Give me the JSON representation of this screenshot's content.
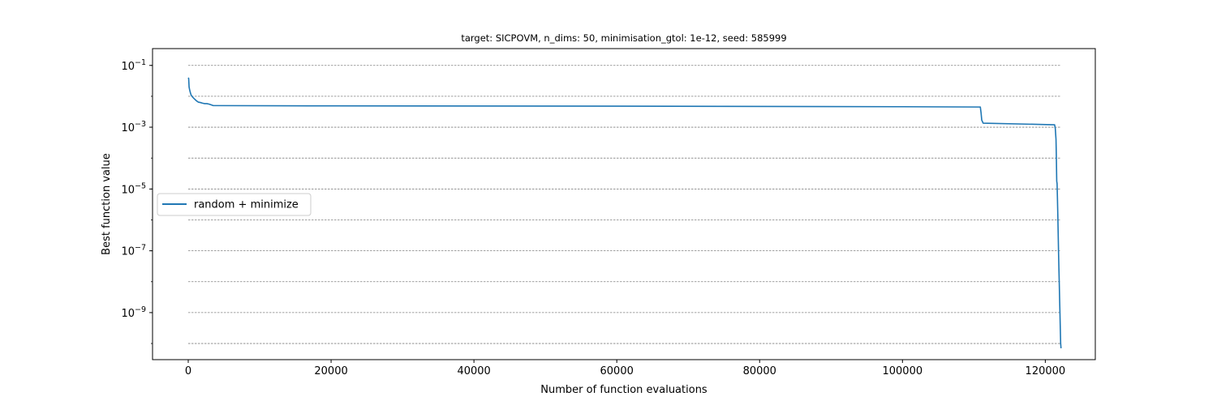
{
  "chart_data": {
    "type": "line",
    "title": "target: SICPOVM, n_dims: 50, minimisation_gtol: 1e-12, seed: 585999",
    "xlabel": "Number of function evaluations",
    "ylabel": "Best function value",
    "xlim": [
      -5000,
      127000
    ],
    "ylim": [
      3e-11,
      0.35
    ],
    "yscale": "log",
    "x_ticks": [
      0,
      20000,
      40000,
      60000,
      80000,
      100000,
      120000
    ],
    "x_tick_labels": [
      "0",
      "20000",
      "40000",
      "60000",
      "80000",
      "100000",
      "120000"
    ],
    "y_tick_exponents": [
      -1,
      -3,
      -5,
      -7,
      -9
    ],
    "y_tick_base": "10",
    "y_tick_minus": "−",
    "grid": "horizontal dashed at every decade",
    "grid_lines": [
      0.1,
      0.01,
      0.001,
      0.0001,
      1e-05,
      1e-06,
      1e-07,
      1e-08,
      1e-09,
      1e-10
    ],
    "legend_position": "center-left",
    "series": [
      {
        "name": "random + minimize",
        "color": "#1f77b4",
        "x": [
          0,
          60,
          120,
          200,
          300,
          400,
          600,
          800,
          1000,
          1200,
          1400,
          1700,
          2000,
          2300,
          2600,
          2900,
          3200,
          3500,
          3600,
          20000,
          60000,
          100000,
          110900,
          111000,
          111100,
          111300,
          121300,
          121400,
          121500,
          121550,
          121600,
          121650,
          121700,
          121750,
          121800,
          121850,
          121900,
          121950,
          122000,
          122050,
          122100,
          122150,
          122200
        ],
        "y": [
          0.04,
          0.038,
          0.02,
          0.016,
          0.013,
          0.011,
          0.0095,
          0.0085,
          0.0077,
          0.007,
          0.0065,
          0.0063,
          0.006,
          0.0058,
          0.0058,
          0.0056,
          0.0053,
          0.005,
          0.005,
          0.0049,
          0.0048,
          0.0046,
          0.0045,
          0.003,
          0.0017,
          0.00135,
          0.0012,
          0.0009,
          0.0004,
          0.0001,
          1.8e-05,
          1.5e-05,
          5e-06,
          1.5e-06,
          4e-07,
          1e-07,
          3e-08,
          1e-08,
          3e-09,
          1e-09,
          3e-10,
          1e-10,
          7e-11
        ]
      }
    ]
  }
}
